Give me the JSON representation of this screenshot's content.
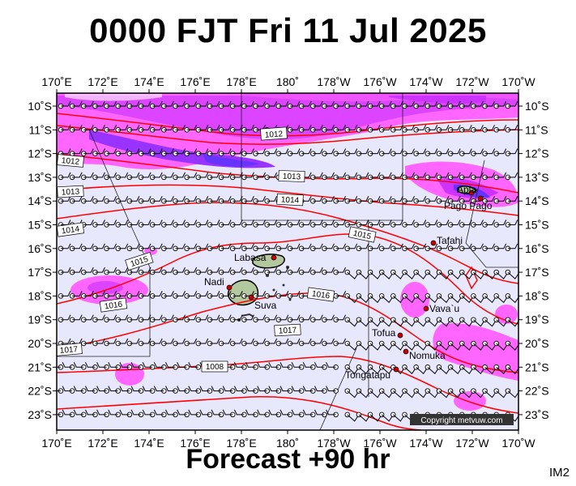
{
  "title": "0000 FJT Fri 11 Jul 2025",
  "forecast_label": "Forecast +90 hr",
  "image_code": "IM2",
  "copyright": "Copyright metvuw.com",
  "colors": {
    "ocean": "#e8e8fc",
    "rain_light": "#ff66ff",
    "rain_medium": "#cc33ff",
    "rain_heavy": "#6633ff",
    "isobar": "#ff0000",
    "land": "#b4c8a0"
  },
  "axes": {
    "lon_labels": [
      "170˚E",
      "172˚E",
      "174˚E",
      "176˚E",
      "178˚E",
      "180˚",
      "178˚W",
      "176˚W",
      "174˚W",
      "172˚W",
      "170˚W"
    ],
    "lat_labels": [
      "10˚S",
      "11˚S",
      "12˚S",
      "13˚S",
      "14˚S",
      "15˚S",
      "16˚S",
      "17˚S",
      "18˚S",
      "19˚S",
      "20˚S",
      "21˚S",
      "22˚S",
      "23˚S"
    ]
  },
  "isobar_labels": [
    "1012",
    "1012",
    "1013",
    "1013",
    "1014",
    "1014",
    "1015",
    "1015",
    "1016",
    "1016",
    "1016",
    "1017",
    "1017",
    "1008"
  ],
  "places": [
    "Apia",
    "Pago Pago",
    "Tafahi",
    "Labasa",
    "Nadi",
    "Suva",
    "Vava`u",
    "Tofua",
    "Nomuka",
    "Tongatapu"
  ]
}
